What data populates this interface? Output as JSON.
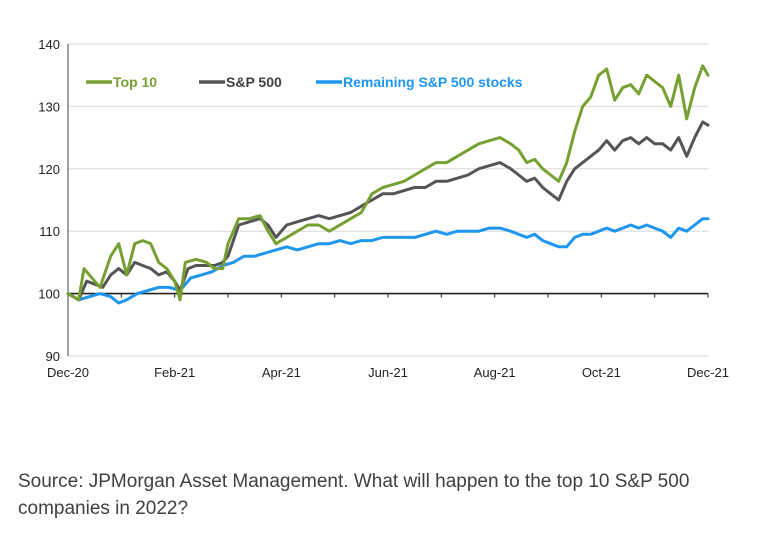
{
  "chart_data": {
    "type": "line",
    "title": "",
    "xlabel": "",
    "ylabel": "",
    "ylim": [
      90,
      140
    ],
    "yticks": [
      90,
      100,
      110,
      120,
      130,
      140
    ],
    "baseline": 100,
    "grid": "horizontal",
    "legend_position": "top-left",
    "x_tick_labels": [
      "Dec-20",
      "Feb-21",
      "Apr-21",
      "Jun-21",
      "Aug-21",
      "Oct-21",
      "Dec-21"
    ],
    "x_tick_months": [
      0,
      2,
      4,
      6,
      8,
      10,
      12
    ],
    "x_range_months": [
      0,
      12
    ],
    "series": [
      {
        "name": "Top 10",
        "color": "#76a031",
        "points": [
          [
            0,
            100
          ],
          [
            0.2,
            99
          ],
          [
            0.3,
            104
          ],
          [
            0.5,
            102
          ],
          [
            0.6,
            101
          ],
          [
            0.8,
            106
          ],
          [
            0.95,
            108
          ],
          [
            1.1,
            103
          ],
          [
            1.25,
            108
          ],
          [
            1.4,
            108.5
          ],
          [
            1.55,
            108
          ],
          [
            1.7,
            105
          ],
          [
            1.85,
            104
          ],
          [
            2,
            102
          ],
          [
            2.1,
            99
          ],
          [
            2.2,
            105
          ],
          [
            2.4,
            105.5
          ],
          [
            2.6,
            105
          ],
          [
            2.75,
            104
          ],
          [
            2.9,
            104
          ],
          [
            3.0,
            108
          ],
          [
            3.2,
            112
          ],
          [
            3.4,
            112
          ],
          [
            3.6,
            112.5
          ],
          [
            3.75,
            110
          ],
          [
            3.9,
            108
          ],
          [
            4.1,
            109
          ],
          [
            4.3,
            110
          ],
          [
            4.5,
            111
          ],
          [
            4.7,
            111
          ],
          [
            4.9,
            110
          ],
          [
            5.1,
            111
          ],
          [
            5.3,
            112
          ],
          [
            5.5,
            113
          ],
          [
            5.7,
            116
          ],
          [
            5.9,
            117
          ],
          [
            6.1,
            117.5
          ],
          [
            6.3,
            118
          ],
          [
            6.5,
            119
          ],
          [
            6.7,
            120
          ],
          [
            6.9,
            121
          ],
          [
            7.1,
            121
          ],
          [
            7.3,
            122
          ],
          [
            7.5,
            123
          ],
          [
            7.7,
            124
          ],
          [
            7.9,
            124.5
          ],
          [
            8.1,
            125
          ],
          [
            8.3,
            124
          ],
          [
            8.45,
            123
          ],
          [
            8.6,
            121
          ],
          [
            8.75,
            121.5
          ],
          [
            8.9,
            120
          ],
          [
            9.05,
            119
          ],
          [
            9.2,
            118
          ],
          [
            9.35,
            121
          ],
          [
            9.5,
            126
          ],
          [
            9.65,
            130
          ],
          [
            9.8,
            131.5
          ],
          [
            9.95,
            135
          ],
          [
            10.1,
            136
          ],
          [
            10.25,
            131
          ],
          [
            10.4,
            133
          ],
          [
            10.55,
            133.5
          ],
          [
            10.7,
            132
          ],
          [
            10.85,
            135
          ],
          [
            11.0,
            134
          ],
          [
            11.15,
            133
          ],
          [
            11.3,
            130
          ],
          [
            11.45,
            135
          ],
          [
            11.6,
            128
          ],
          [
            11.75,
            133
          ],
          [
            11.9,
            136.5
          ],
          [
            12,
            135
          ]
        ]
      },
      {
        "name": "S&P 500",
        "color": "#555555",
        "points": [
          [
            0,
            100
          ],
          [
            0.2,
            99
          ],
          [
            0.35,
            102
          ],
          [
            0.5,
            101.5
          ],
          [
            0.65,
            101
          ],
          [
            0.8,
            103
          ],
          [
            0.95,
            104
          ],
          [
            1.1,
            103
          ],
          [
            1.25,
            105
          ],
          [
            1.4,
            104.5
          ],
          [
            1.55,
            104
          ],
          [
            1.7,
            103
          ],
          [
            1.85,
            103.5
          ],
          [
            2,
            102
          ],
          [
            2.1,
            100.5
          ],
          [
            2.25,
            104
          ],
          [
            2.4,
            104.5
          ],
          [
            2.6,
            104.5
          ],
          [
            2.75,
            104.5
          ],
          [
            2.9,
            105
          ],
          [
            3.0,
            106
          ],
          [
            3.2,
            111
          ],
          [
            3.4,
            111.5
          ],
          [
            3.6,
            112
          ],
          [
            3.75,
            111
          ],
          [
            3.9,
            109
          ],
          [
            4.1,
            111
          ],
          [
            4.3,
            111.5
          ],
          [
            4.5,
            112
          ],
          [
            4.7,
            112.5
          ],
          [
            4.9,
            112
          ],
          [
            5.1,
            112.5
          ],
          [
            5.3,
            113
          ],
          [
            5.5,
            114
          ],
          [
            5.7,
            115
          ],
          [
            5.9,
            116
          ],
          [
            6.1,
            116
          ],
          [
            6.3,
            116.5
          ],
          [
            6.5,
            117
          ],
          [
            6.7,
            117
          ],
          [
            6.9,
            118
          ],
          [
            7.1,
            118
          ],
          [
            7.3,
            118.5
          ],
          [
            7.5,
            119
          ],
          [
            7.7,
            120
          ],
          [
            7.9,
            120.5
          ],
          [
            8.1,
            121
          ],
          [
            8.3,
            120
          ],
          [
            8.45,
            119
          ],
          [
            8.6,
            118
          ],
          [
            8.75,
            118.5
          ],
          [
            8.9,
            117
          ],
          [
            9.05,
            116
          ],
          [
            9.2,
            115
          ],
          [
            9.35,
            118
          ],
          [
            9.5,
            120
          ],
          [
            9.65,
            121
          ],
          [
            9.8,
            122
          ],
          [
            9.95,
            123
          ],
          [
            10.1,
            124.5
          ],
          [
            10.25,
            123
          ],
          [
            10.4,
            124.5
          ],
          [
            10.55,
            125
          ],
          [
            10.7,
            124
          ],
          [
            10.85,
            125
          ],
          [
            11.0,
            124
          ],
          [
            11.15,
            124
          ],
          [
            11.3,
            123
          ],
          [
            11.45,
            125
          ],
          [
            11.6,
            122
          ],
          [
            11.75,
            125
          ],
          [
            11.9,
            127.5
          ],
          [
            12,
            127
          ]
        ]
      },
      {
        "name": "Remaining S&P 500 stocks",
        "color": "#1e96f0",
        "points": [
          [
            0,
            100
          ],
          [
            0.2,
            99
          ],
          [
            0.4,
            99.5
          ],
          [
            0.6,
            100
          ],
          [
            0.8,
            99.5
          ],
          [
            0.95,
            98.5
          ],
          [
            1.1,
            99
          ],
          [
            1.3,
            100
          ],
          [
            1.5,
            100.5
          ],
          [
            1.7,
            101
          ],
          [
            1.9,
            101
          ],
          [
            2.1,
            100.5
          ],
          [
            2.3,
            102.5
          ],
          [
            2.5,
            103
          ],
          [
            2.7,
            103.5
          ],
          [
            2.9,
            104.5
          ],
          [
            3.1,
            105
          ],
          [
            3.3,
            106
          ],
          [
            3.5,
            106
          ],
          [
            3.7,
            106.5
          ],
          [
            3.9,
            107
          ],
          [
            4.1,
            107.5
          ],
          [
            4.3,
            107
          ],
          [
            4.5,
            107.5
          ],
          [
            4.7,
            108
          ],
          [
            4.9,
            108
          ],
          [
            5.1,
            108.5
          ],
          [
            5.3,
            108
          ],
          [
            5.5,
            108.5
          ],
          [
            5.7,
            108.5
          ],
          [
            5.9,
            109
          ],
          [
            6.1,
            109
          ],
          [
            6.3,
            109
          ],
          [
            6.5,
            109
          ],
          [
            6.7,
            109.5
          ],
          [
            6.9,
            110
          ],
          [
            7.1,
            109.5
          ],
          [
            7.3,
            110
          ],
          [
            7.5,
            110
          ],
          [
            7.7,
            110
          ],
          [
            7.9,
            110.5
          ],
          [
            8.1,
            110.5
          ],
          [
            8.3,
            110
          ],
          [
            8.45,
            109.5
          ],
          [
            8.6,
            109
          ],
          [
            8.75,
            109.5
          ],
          [
            8.9,
            108.5
          ],
          [
            9.05,
            108
          ],
          [
            9.2,
            107.5
          ],
          [
            9.35,
            107.5
          ],
          [
            9.5,
            109
          ],
          [
            9.65,
            109.5
          ],
          [
            9.8,
            109.5
          ],
          [
            9.95,
            110
          ],
          [
            10.1,
            110.5
          ],
          [
            10.25,
            110
          ],
          [
            10.4,
            110.5
          ],
          [
            10.55,
            111
          ],
          [
            10.7,
            110.5
          ],
          [
            10.85,
            111
          ],
          [
            11.0,
            110.5
          ],
          [
            11.15,
            110
          ],
          [
            11.3,
            109
          ],
          [
            11.45,
            110.5
          ],
          [
            11.6,
            110
          ],
          [
            11.75,
            111
          ],
          [
            11.9,
            112
          ],
          [
            12,
            112
          ]
        ]
      }
    ]
  },
  "caption": "Source: JPMorgan Asset Management. What will happen to the top 10 S&P 500 companies in 2022?"
}
